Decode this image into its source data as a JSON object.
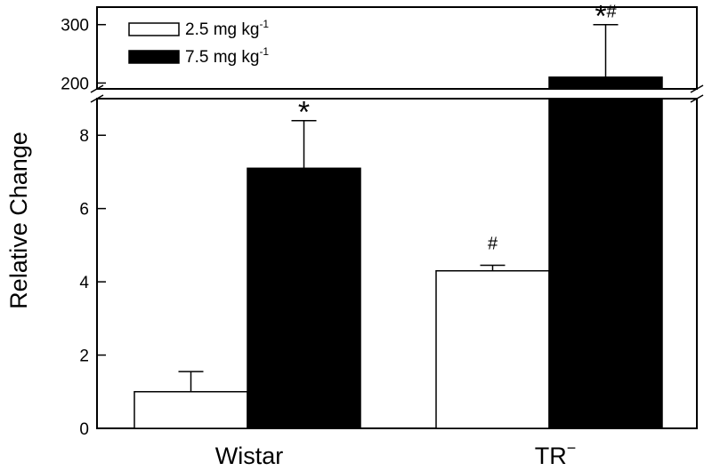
{
  "chart_data": {
    "type": "bar",
    "ylabel": "Relative Change",
    "categories": [
      "Wistar",
      "TR"
    ],
    "category_superscripts": [
      "",
      "−"
    ],
    "series": [
      {
        "name": "2.5 mg kg",
        "name_superscript": "-1",
        "fill": "#ffffff",
        "values": [
          1.0,
          4.3
        ],
        "errors": [
          0.55,
          0.15
        ],
        "annotations": [
          "",
          "#"
        ]
      },
      {
        "name": "7.5 mg kg",
        "name_superscript": "-1",
        "fill": "#000000",
        "values": [
          7.1,
          210
        ],
        "errors": [
          1.3,
          90
        ],
        "annotations": [
          "*",
          "*#"
        ]
      }
    ],
    "y_lower": {
      "range": [
        0,
        9
      ],
      "ticks": [
        "0",
        "2",
        "4",
        "6",
        "8"
      ]
    },
    "y_upper": {
      "range": [
        190,
        330
      ],
      "ticks": [
        "200",
        "300"
      ]
    },
    "axis_break": true,
    "legend_position": "top-left",
    "grid": false
  }
}
